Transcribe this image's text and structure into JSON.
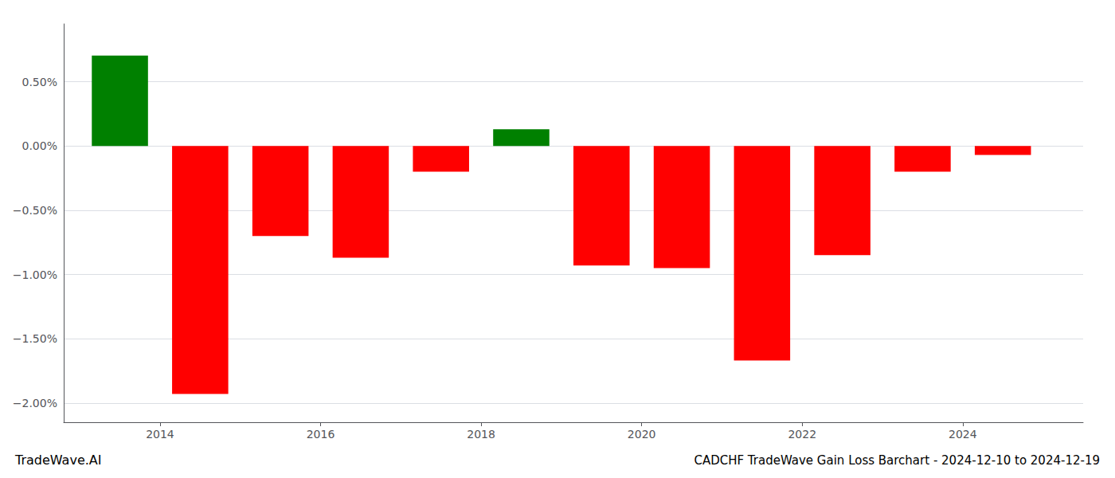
{
  "chart_data": {
    "type": "bar",
    "title": "CADCHF TradeWave Gain Loss Barchart - 2024-12-10 to 2024-12-19",
    "annotations": [
      "TradeWave.AI"
    ],
    "x": [
      2013.5,
      2014.5,
      2015.5,
      2016.5,
      2017.5,
      2018.5,
      2019.5,
      2020.5,
      2021.5,
      2022.5,
      2023.5,
      2024.5
    ],
    "values": [
      0.703,
      -1.93,
      -0.7,
      -0.87,
      -0.2,
      0.13,
      -0.93,
      -0.95,
      -1.67,
      -0.85,
      -0.2,
      -0.07
    ],
    "colors": [
      "#008000",
      "#ff0000",
      "#ff0000",
      "#ff0000",
      "#ff0000",
      "#008000",
      "#ff0000",
      "#ff0000",
      "#ff0000",
      "#ff0000",
      "#ff0000",
      "#ff0000"
    ],
    "xlim": [
      2012.8,
      2025.5
    ],
    "xticks": [
      2014,
      2016,
      2018,
      2020,
      2022,
      2024
    ],
    "ylim": [
      -2.15,
      0.95
    ],
    "yticks": [
      {
        "value": 0.5,
        "label": "0.50%"
      },
      {
        "value": 0.0,
        "label": "0.00%"
      },
      {
        "value": -0.5,
        "label": "−0.50%"
      },
      {
        "value": -1.0,
        "label": "−1.00%"
      },
      {
        "value": -1.5,
        "label": "−1.50%"
      },
      {
        "value": -2.0,
        "label": "−2.00%"
      }
    ],
    "grid": true
  }
}
